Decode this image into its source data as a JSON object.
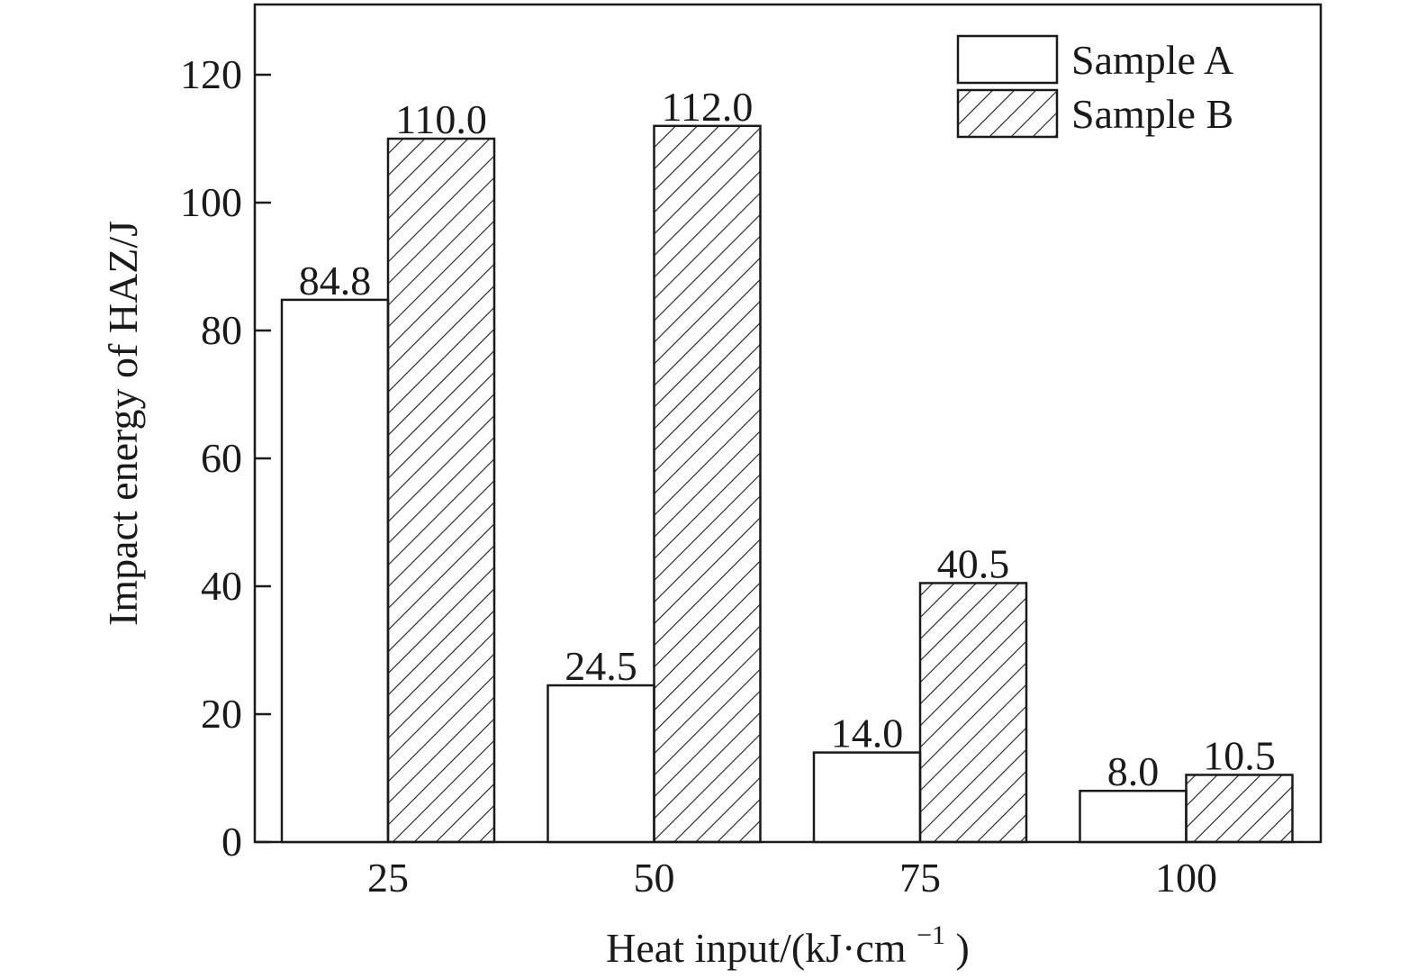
{
  "chart_data": {
    "type": "bar",
    "title": "",
    "xlabel": "Heat input/(kJ·cm",
    "xlabel_superscript": "−1",
    "xlabel_suffix": ")",
    "ylabel": "Impact energy of HAZ/J",
    "categories": [
      "25",
      "50",
      "75",
      "100"
    ],
    "series": [
      {
        "name": "Sample A",
        "values": [
          84.8,
          24.5,
          14.0,
          8.0
        ],
        "labels": [
          "84.8",
          "24.5",
          "14.0",
          "8.0"
        ],
        "fill": "#ffffff",
        "pattern": "none"
      },
      {
        "name": "Sample B",
        "values": [
          110.0,
          112.0,
          40.5,
          10.5
        ],
        "labels": [
          "110.0",
          "112.0",
          "40.5",
          "10.5"
        ],
        "fill": "#ffffff",
        "pattern": "diagonal-hatch"
      }
    ],
    "ylim": [
      0,
      130
    ],
    "yticks": [
      "0",
      "20",
      "40",
      "60",
      "80",
      "100",
      "120"
    ],
    "grid": false,
    "legend": "top-right",
    "colors": {
      "stroke": "#1a1a1a",
      "background": "#ffffff"
    }
  }
}
